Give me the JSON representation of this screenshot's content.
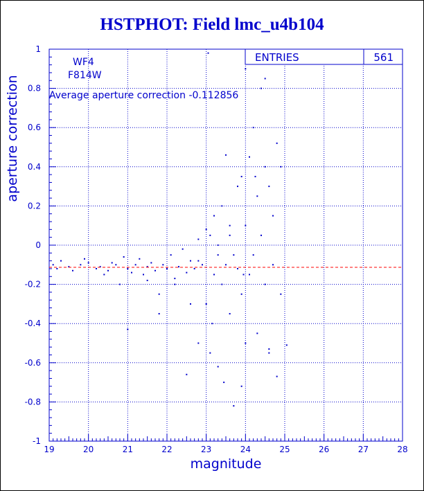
{
  "chart_data": {
    "type": "scatter",
    "title": "HSTPHOT: Field lmc_u4b104",
    "xlabel": "magnitude",
    "ylabel": "aperture correction",
    "xlim": [
      19,
      28
    ],
    "ylim": [
      -1,
      1
    ],
    "x_ticks": [
      "19",
      "20",
      "21",
      "22",
      "23",
      "24",
      "25",
      "26",
      "27",
      "28"
    ],
    "y_ticks": [
      "1",
      "0.8",
      "0.6",
      "0.4",
      "0.2",
      "0",
      "-0.2",
      "-0.4",
      "-0.6",
      "-0.8",
      "-1"
    ],
    "grid": true,
    "annotations": {
      "chip": "WF4",
      "filter": "F814W",
      "average_text": "Average aperture correction -0.112856",
      "average_value": -0.112856
    },
    "stats_box": {
      "label": "ENTRIES",
      "value": "561"
    },
    "colors": {
      "points": "#0000cc",
      "axes": "#0000cc",
      "grid": "#0000cc",
      "average_line": "#ff0000"
    },
    "points": [
      [
        19.1,
        -0.1
      ],
      [
        19.2,
        -0.12
      ],
      [
        19.3,
        -0.08
      ],
      [
        19.5,
        -0.11
      ],
      [
        19.6,
        -0.13
      ],
      [
        19.8,
        -0.1
      ],
      [
        19.9,
        -0.07
      ],
      [
        20.0,
        -0.09
      ],
      [
        20.2,
        -0.12
      ],
      [
        20.3,
        -0.11
      ],
      [
        20.4,
        -0.15
      ],
      [
        20.5,
        -0.13
      ],
      [
        20.6,
        -0.09
      ],
      [
        20.7,
        -0.1
      ],
      [
        20.8,
        -0.2
      ],
      [
        20.9,
        -0.06
      ],
      [
        21.0,
        -0.12
      ],
      [
        21.0,
        -0.43
      ],
      [
        21.1,
        -0.14
      ],
      [
        21.2,
        -0.1
      ],
      [
        21.3,
        -0.07
      ],
      [
        21.4,
        -0.15
      ],
      [
        21.5,
        -0.11
      ],
      [
        21.6,
        -0.09
      ],
      [
        21.7,
        -0.13
      ],
      [
        21.8,
        -0.25
      ],
      [
        21.9,
        -0.1
      ],
      [
        22.0,
        -0.12
      ],
      [
        22.1,
        -0.05
      ],
      [
        22.2,
        -0.17
      ],
      [
        22.3,
        -0.11
      ],
      [
        22.4,
        -0.02
      ],
      [
        22.5,
        -0.14
      ],
      [
        22.5,
        -0.66
      ],
      [
        22.6,
        -0.08
      ],
      [
        22.7,
        -0.12
      ],
      [
        22.8,
        0.03
      ],
      [
        22.8,
        -0.5
      ],
      [
        22.9,
        -0.1
      ],
      [
        23.0,
        0.08
      ],
      [
        23.0,
        -0.3
      ],
      [
        23.05,
        0.98
      ],
      [
        23.1,
        0.05
      ],
      [
        23.1,
        -0.55
      ],
      [
        23.2,
        -0.15
      ],
      [
        23.2,
        0.15
      ],
      [
        23.3,
        -0.05
      ],
      [
        23.3,
        -0.62
      ],
      [
        23.4,
        0.2
      ],
      [
        23.4,
        -0.2
      ],
      [
        23.5,
        0.46
      ],
      [
        23.5,
        -0.1
      ],
      [
        23.6,
        0.1
      ],
      [
        23.6,
        -0.35
      ],
      [
        23.7,
        -0.82
      ],
      [
        23.7,
        -0.05
      ],
      [
        23.8,
        0.3
      ],
      [
        23.8,
        -0.12
      ],
      [
        23.9,
        0.35
      ],
      [
        23.9,
        -0.25
      ],
      [
        24.0,
        0.9
      ],
      [
        24.0,
        0.1
      ],
      [
        24.0,
        -0.5
      ],
      [
        24.1,
        0.45
      ],
      [
        24.1,
        -0.15
      ],
      [
        24.2,
        0.6
      ],
      [
        24.2,
        -0.05
      ],
      [
        24.3,
        0.25
      ],
      [
        24.3,
        -0.45
      ],
      [
        24.4,
        0.8
      ],
      [
        24.4,
        0.05
      ],
      [
        24.5,
        0.85
      ],
      [
        24.5,
        0.4
      ],
      [
        24.5,
        -0.2
      ],
      [
        24.6,
        0.3
      ],
      [
        24.6,
        -0.55
      ],
      [
        24.7,
        0.15
      ],
      [
        24.7,
        -0.1
      ],
      [
        24.8,
        0.52
      ],
      [
        24.8,
        -0.67
      ],
      [
        24.9,
        0.4
      ],
      [
        24.9,
        -0.25
      ],
      [
        25.05,
        -0.51
      ],
      [
        22.2,
        -0.2
      ],
      [
        21.5,
        -0.18
      ],
      [
        22.8,
        -0.08
      ],
      [
        23.3,
        0.0
      ],
      [
        23.6,
        0.05
      ],
      [
        23.95,
        -0.15
      ],
      [
        24.25,
        0.35
      ],
      [
        22.6,
        -0.3
      ],
      [
        21.8,
        -0.35
      ],
      [
        23.15,
        -0.4
      ],
      [
        23.45,
        -0.7
      ],
      [
        23.9,
        -0.72
      ],
      [
        24.6,
        -0.53
      ]
    ]
  }
}
